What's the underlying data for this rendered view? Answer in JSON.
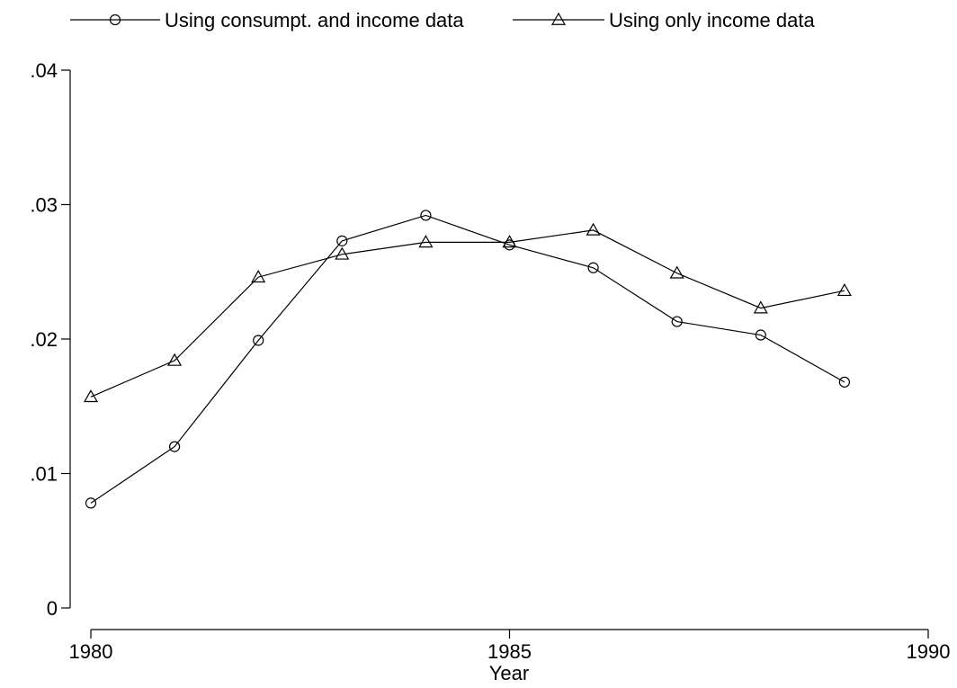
{
  "chart_data": {
    "type": "line",
    "title": "",
    "xlabel": "Year",
    "ylabel": "",
    "xlim": [
      1980,
      1990
    ],
    "ylim": [
      0,
      0.04
    ],
    "x_ticks": [
      1980,
      1985,
      1990
    ],
    "x_tick_labels": [
      "1980",
      "1985",
      "1990"
    ],
    "y_ticks": [
      0,
      0.01,
      0.02,
      0.03,
      0.04
    ],
    "y_tick_labels": [
      "0",
      ".01",
      ".02",
      ".03",
      ".04"
    ],
    "grid": false,
    "legend_position": "top",
    "series": [
      {
        "name": "Using consumpt. and income data",
        "marker": "circle",
        "x": [
          1980,
          1981,
          1982,
          1983,
          1984,
          1985,
          1986,
          1987,
          1988,
          1989
        ],
        "values": [
          0.0078,
          0.012,
          0.0199,
          0.0273,
          0.0292,
          0.027,
          0.0253,
          0.0213,
          0.0203,
          0.0168
        ]
      },
      {
        "name": "Using only income data",
        "marker": "triangle",
        "x": [
          1980,
          1981,
          1982,
          1983,
          1984,
          1985,
          1986,
          1987,
          1988,
          1989
        ],
        "values": [
          0.0157,
          0.0184,
          0.0246,
          0.0263,
          0.0272,
          0.0272,
          0.0281,
          0.0249,
          0.0223,
          0.0236
        ]
      }
    ]
  }
}
